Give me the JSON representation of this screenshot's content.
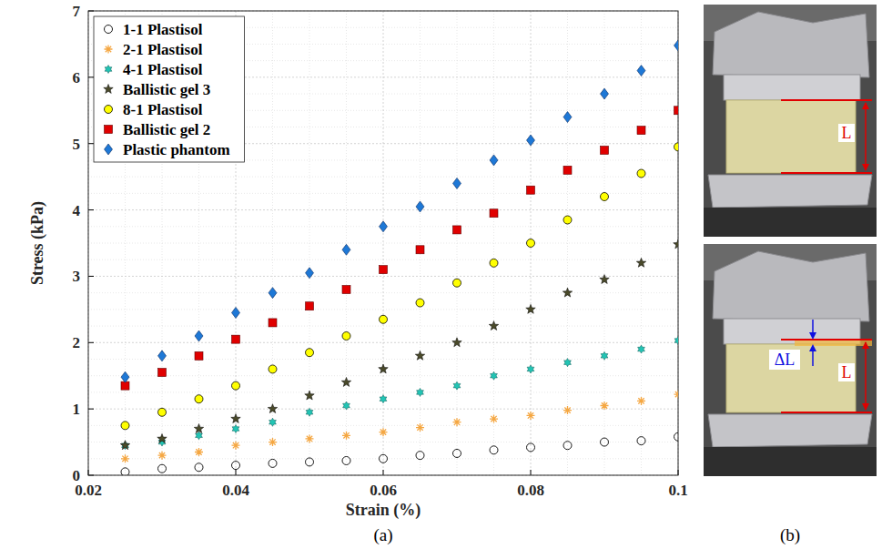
{
  "chart_data": {
    "type": "scatter",
    "x_label": "Strain (%)",
    "y_label": "Stress (kPa)",
    "x": [
      0.025,
      0.03,
      0.035,
      0.04,
      0.045,
      0.05,
      0.055,
      0.06,
      0.065,
      0.07,
      0.075,
      0.08,
      0.085,
      0.09,
      0.095,
      0.1
    ],
    "series": [
      {
        "name": "1-1 Plastisol",
        "color": "#000000",
        "marker": "circle-open",
        "values": [
          0.05,
          0.1,
          0.12,
          0.15,
          0.18,
          0.2,
          0.22,
          0.25,
          0.3,
          0.33,
          0.38,
          0.42,
          0.45,
          0.5,
          0.52,
          0.58
        ]
      },
      {
        "name": "2-1 Plastisol",
        "color": "#f5a742",
        "marker": "asterisk",
        "values": [
          0.25,
          0.3,
          0.35,
          0.45,
          0.5,
          0.55,
          0.6,
          0.65,
          0.72,
          0.8,
          0.85,
          0.9,
          0.98,
          1.05,
          1.12,
          1.22
        ]
      },
      {
        "name": "4-1 Plastisol",
        "color": "#22c4b4",
        "marker": "hexagram",
        "values": [
          0.45,
          0.5,
          0.6,
          0.7,
          0.8,
          0.95,
          1.05,
          1.15,
          1.25,
          1.35,
          1.5,
          1.6,
          1.7,
          1.8,
          1.9,
          2.03
        ]
      },
      {
        "name": "Ballistic gel 3",
        "color": "#4a4a2a",
        "marker": "pentagram",
        "values": [
          0.45,
          0.55,
          0.7,
          0.85,
          1.0,
          1.2,
          1.4,
          1.6,
          1.8,
          2.0,
          2.25,
          2.5,
          2.75,
          2.95,
          3.2,
          3.48
        ]
      },
      {
        "name": "8-1 Plastisol",
        "color": "#ffff00",
        "marker": "circle",
        "values": [
          0.75,
          0.95,
          1.15,
          1.35,
          1.6,
          1.85,
          2.1,
          2.35,
          2.6,
          2.9,
          3.2,
          3.5,
          3.85,
          4.2,
          4.55,
          4.95
        ]
      },
      {
        "name": "Ballistic gel 2",
        "color": "#e00000",
        "marker": "square",
        "values": [
          1.35,
          1.55,
          1.8,
          2.05,
          2.3,
          2.55,
          2.8,
          3.1,
          3.4,
          3.7,
          3.95,
          4.3,
          4.6,
          4.9,
          5.2,
          5.5
        ]
      },
      {
        "name": "Plastic phantom",
        "color": "#1e78d6",
        "marker": "diamond",
        "values": [
          1.48,
          1.8,
          2.1,
          2.45,
          2.75,
          3.05,
          3.4,
          3.75,
          4.05,
          4.4,
          4.75,
          5.05,
          5.4,
          5.75,
          6.1,
          6.48
        ]
      }
    ],
    "xlim": [
      0.02,
      0.1
    ],
    "xticks": [
      0.02,
      0.04,
      0.06,
      0.08,
      0.1
    ],
    "ylim": [
      0,
      7
    ],
    "yticks": [
      0,
      1,
      2,
      3,
      4,
      5,
      6,
      7
    ],
    "grid": true,
    "legend": "upper left"
  },
  "panels": {
    "a": {
      "label": "(a)"
    },
    "b": {
      "label": "(b)",
      "annotations": [
        "L",
        "ΔL",
        "L"
      ]
    }
  }
}
